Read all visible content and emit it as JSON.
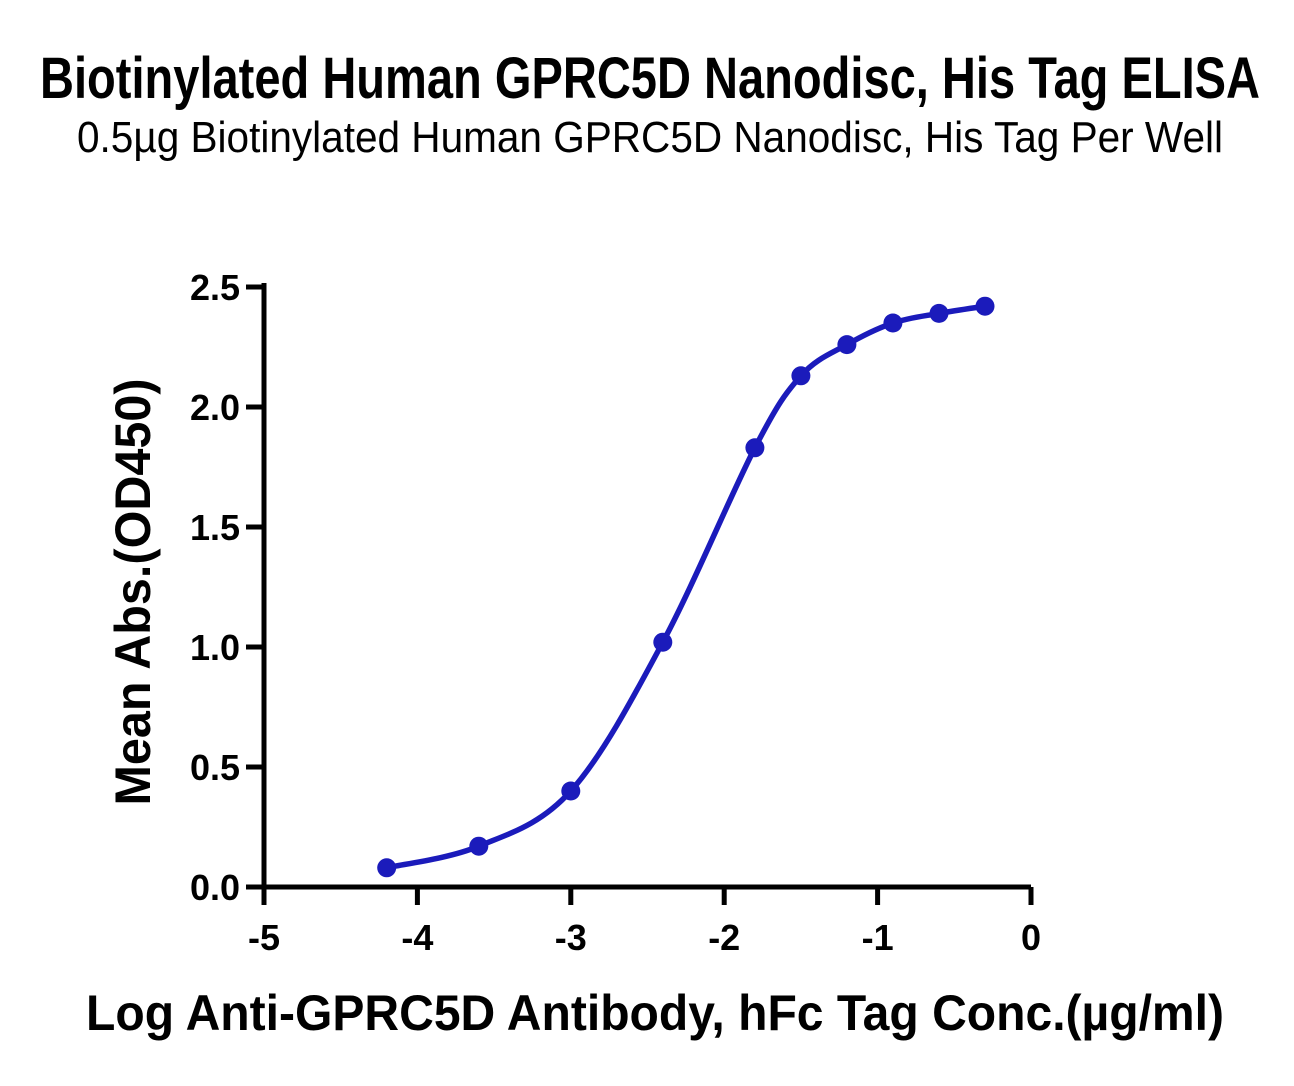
{
  "page": {
    "background_color": "#ffffff",
    "text_color": "#000000"
  },
  "chart_data": {
    "type": "line",
    "title": "Biotinylated Human GPRC5D Nanodisc, His Tag ELISA",
    "subtitle": "0.5µg Biotinylated Human GPRC5D Nanodisc, His Tag Per Well",
    "xlabel": "Log Anti-GPRC5D Antibody, hFc Tag Conc.(µg/ml)",
    "ylabel": "Mean Abs.(OD450)",
    "series": [
      {
        "name": "Anti-GPRC5D Antibody, hFc Tag",
        "x": [
          -4.2,
          -3.6,
          -3.0,
          -2.4,
          -1.8,
          -1.5,
          -1.2,
          -0.9,
          -0.6,
          -0.3
        ],
        "y": [
          0.08,
          0.17,
          0.4,
          1.02,
          1.83,
          2.13,
          2.26,
          2.35,
          2.39,
          2.42
        ],
        "color": "#1b1bbb",
        "marker": "circle",
        "line_style": "smooth-sigmoid"
      }
    ],
    "xlim": [
      -5,
      0
    ],
    "ylim": [
      0.0,
      2.5
    ],
    "x_ticks": [
      -5,
      -4,
      -3,
      -2,
      -1,
      0
    ],
    "x_tick_labels": [
      "-5",
      "-4",
      "-3",
      "-2",
      "-1",
      "0"
    ],
    "y_ticks": [
      0.0,
      0.5,
      1.0,
      1.5,
      2.0,
      2.5
    ],
    "y_tick_labels": [
      "0.0",
      "0.5",
      "1.0",
      "1.5",
      "2.0",
      "2.5"
    ],
    "grid": false,
    "legend_position": "none",
    "axis_color": "#000000"
  }
}
